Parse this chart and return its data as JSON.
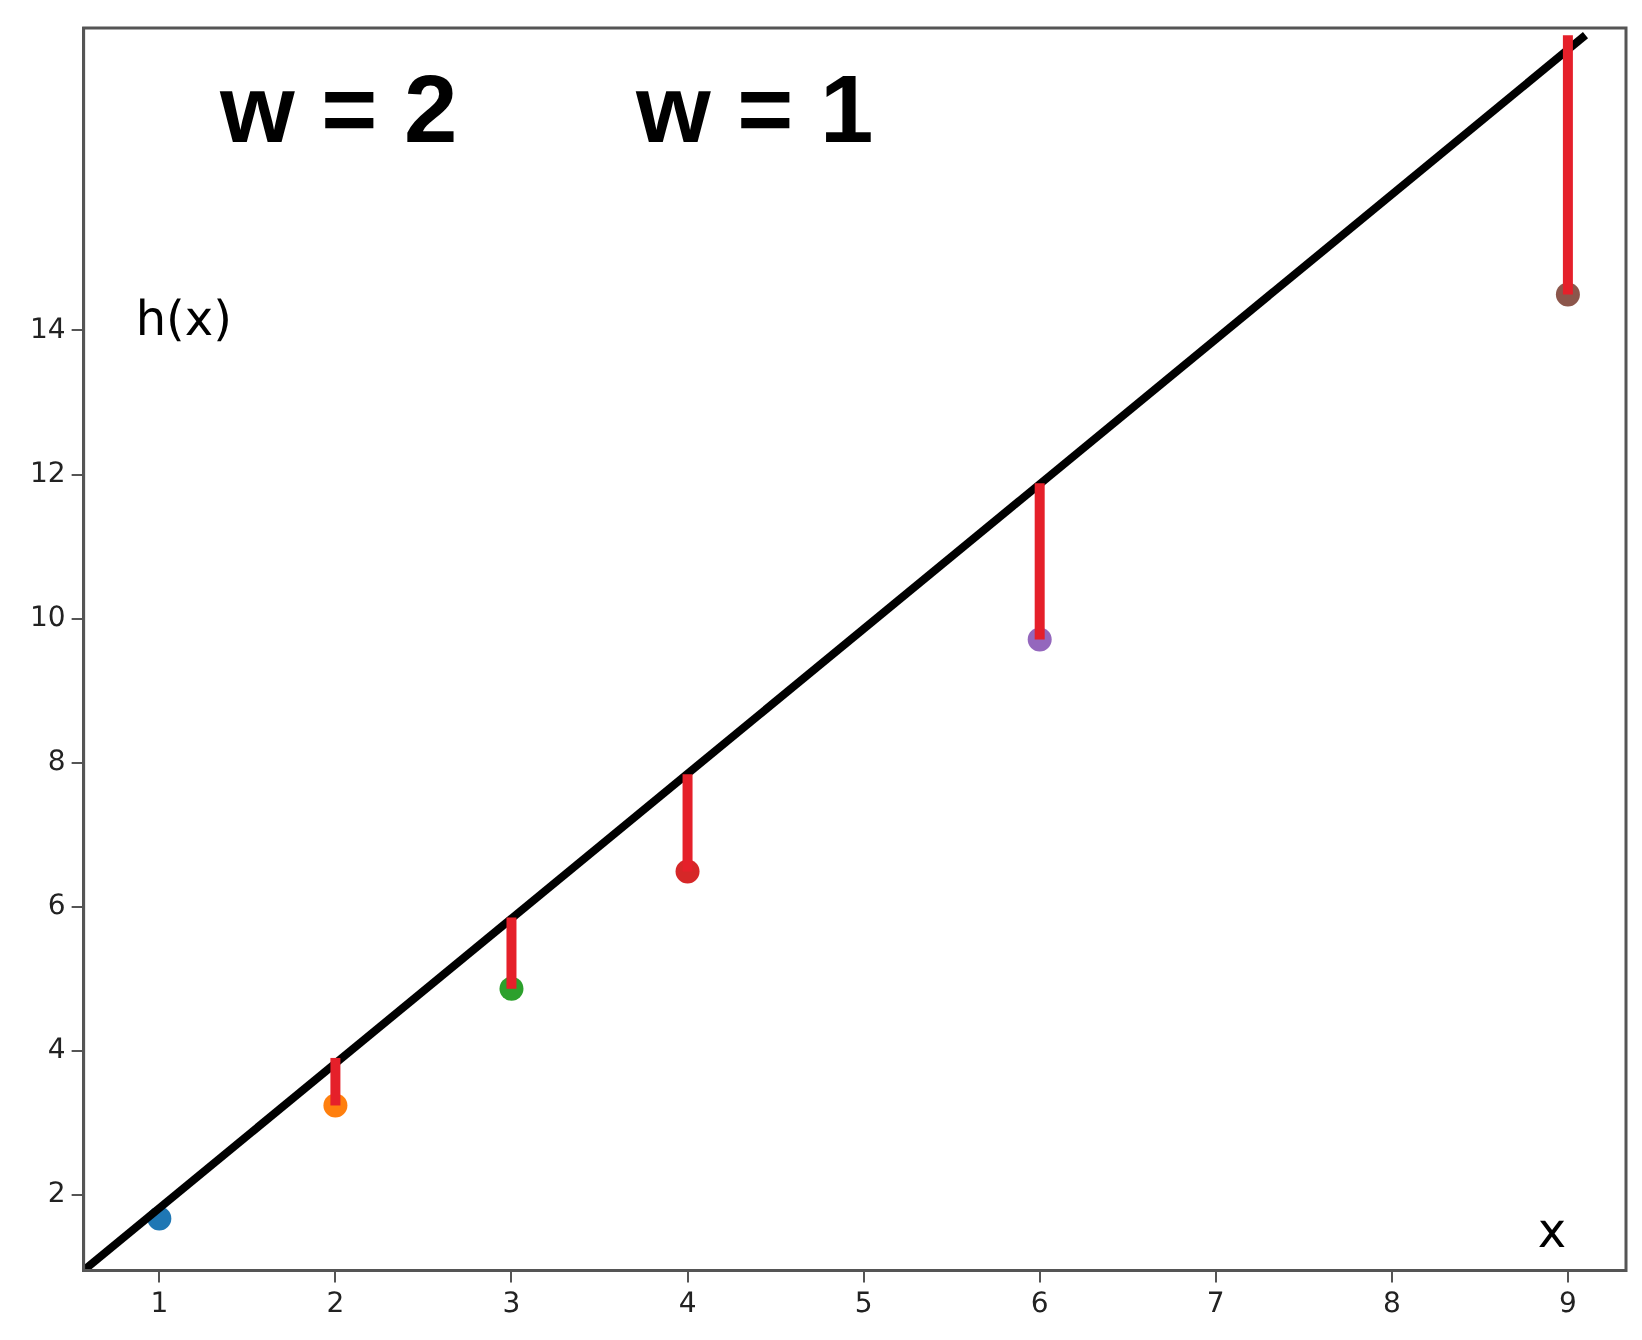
{
  "chart_data": {
    "type": "scatter",
    "xlabel": "x",
    "ylabel": "h(x)",
    "annotations": [
      "w = 2",
      "w = 1"
    ],
    "xlim": [
      0.57,
      9.33
    ],
    "ylim": [
      0.95,
      18.2
    ],
    "xticks": [
      1,
      2,
      3,
      4,
      5,
      6,
      7,
      8,
      9
    ],
    "yticks": [
      2,
      4,
      6,
      8,
      10,
      12,
      14
    ],
    "grid": false,
    "marker": "circle",
    "series": [
      {
        "type": "scatter",
        "x": [
          1,
          2,
          3,
          4,
          6,
          9
        ],
        "values": [
          1.67,
          3.24,
          4.86,
          6.49,
          9.71,
          14.5
        ],
        "colors": [
          "#1f77b4",
          "#ff7f0e",
          "#2ca02c",
          "#d62728",
          "#9467bd",
          "#8c564b"
        ],
        "errors": [
          null,
          [
            3.24,
            3.9
          ],
          [
            4.86,
            5.85
          ],
          [
            6.49,
            7.84
          ],
          [
            9.71,
            11.88
          ],
          [
            14.5,
            18.1
          ]
        ]
      },
      {
        "type": "line",
        "x": [
          0.57,
          9.1
        ],
        "values": [
          0.95,
          18.1
        ],
        "color": "#000000",
        "marker": "none"
      }
    ]
  }
}
